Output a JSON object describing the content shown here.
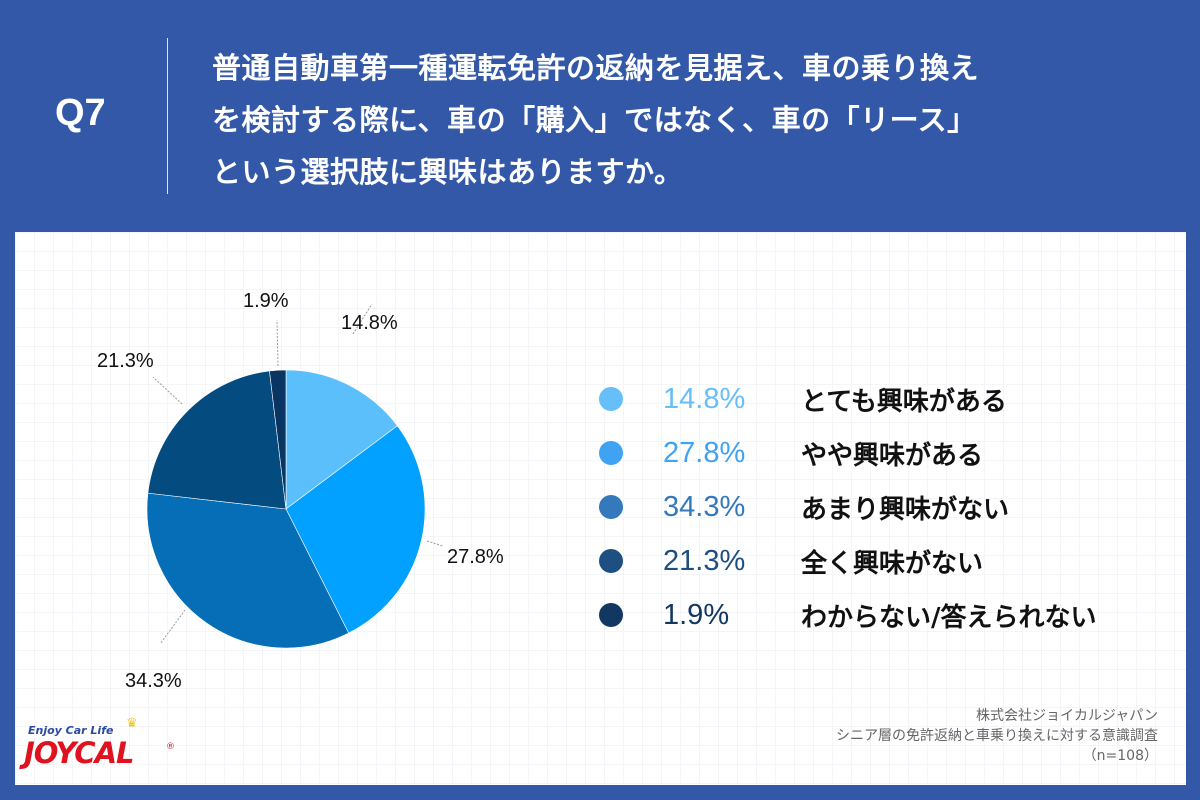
{
  "header": {
    "question_number": "Q7",
    "question_lines": [
      "普通自動車第一種運転免許の返納を見据え、車の乗り換え",
      "を検討する際に、車の「購入」ではなく、車の「リース」",
      "という選択肢に興味はありますか。"
    ]
  },
  "colors": {
    "background": "#3358a8",
    "panel": "#ffffff",
    "slices": [
      "#5bbffc",
      "#02a1ff",
      "#066eb6",
      "#044b7f",
      "#0a3461"
    ],
    "legend_pct": [
      "#66bff8",
      "#3fa2f3",
      "#3579bd",
      "#1d4f80",
      "#123762"
    ]
  },
  "chart_data": {
    "type": "pie",
    "title": "普通自動車第一種運転免許の返納を見据え、車の乗り換えを検討する際に、車の「購入」ではなく、車の「リース」という選択肢に興味はありますか。",
    "categories": [
      "とても興味がある",
      "やや興味がある",
      "あまり興味がない",
      "全く興味がない",
      "わからない/答えられない"
    ],
    "values": [
      14.8,
      27.8,
      34.3,
      21.3,
      1.9
    ],
    "unit": "%",
    "start_angle": "12 o'clock, clockwise",
    "legend_position": "right",
    "n": 108
  },
  "pie_labels": [
    "14.8%",
    "27.8%",
    "34.3%",
    "21.3%",
    "1.9%"
  ],
  "legend": [
    {
      "pct": "14.8%",
      "label": "とても興味がある"
    },
    {
      "pct": "27.8%",
      "label": "やや興味がある"
    },
    {
      "pct": "34.3%",
      "label": "あまり興味がない"
    },
    {
      "pct": "21.3%",
      "label": "全く興味がない"
    },
    {
      "pct": "1.9%",
      "label": "わからない/答えられない"
    }
  ],
  "credit": {
    "company": "株式会社ジョイカルジャパン",
    "survey": "シニア層の免許返納と車乗り換えに対する意識調査",
    "sample": "（n=108）"
  },
  "logo": {
    "tagline": "Enjoy Car Life",
    "brand": "JOYCAL",
    "registered": "®"
  }
}
